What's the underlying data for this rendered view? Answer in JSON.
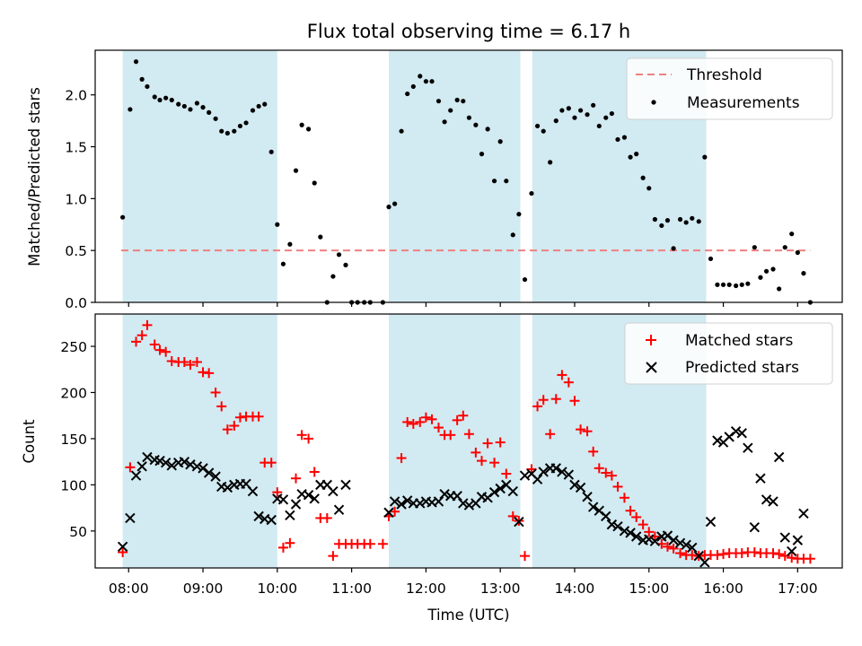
{
  "figure": {
    "title": "Flux total observing time = 6.17 h",
    "xlabel": "Time (UTC)",
    "xticks": [
      {
        "t": 8.0,
        "label": "08:00"
      },
      {
        "t": 9.0,
        "label": "09:00"
      },
      {
        "t": 10.0,
        "label": "10:00"
      },
      {
        "t": 11.0,
        "label": "11:00"
      },
      {
        "t": 12.0,
        "label": "12:00"
      },
      {
        "t": 13.0,
        "label": "13:00"
      },
      {
        "t": 14.0,
        "label": "14:00"
      },
      {
        "t": 15.0,
        "label": "15:00"
      },
      {
        "t": 16.0,
        "label": "16:00"
      },
      {
        "t": 17.0,
        "label": "17:00"
      }
    ],
    "xlim": [
      7.55,
      17.6
    ],
    "shaded_intervals": [
      [
        7.92,
        10.0
      ],
      [
        11.5,
        13.27
      ],
      [
        13.43,
        15.77
      ]
    ],
    "shade_color": "#add8e6"
  },
  "chart_data": [
    {
      "type": "scatter",
      "ylabel": "Matched/Predicted stars",
      "ylim": [
        0,
        2.43
      ],
      "yticks": [
        "0.0",
        "0.5",
        "1.0",
        "1.5",
        "2.0"
      ],
      "ytick_values": [
        0,
        0.5,
        1.0,
        1.5,
        2.0
      ],
      "threshold": {
        "name": "Threshold",
        "value": 0.5,
        "x_range": [
          7.9,
          17.17
        ],
        "color": "#f08080"
      },
      "series": [
        {
          "name": "Measurements",
          "color": "#000000",
          "marker": "dot",
          "x": [
            7.92,
            8.02,
            8.1,
            8.18,
            8.25,
            8.35,
            8.42,
            8.5,
            8.58,
            8.67,
            8.75,
            8.83,
            8.92,
            9.0,
            9.08,
            9.17,
            9.25,
            9.33,
            9.42,
            9.5,
            9.58,
            9.67,
            9.75,
            9.83,
            9.92,
            10.0,
            10.08,
            10.17,
            10.25,
            10.33,
            10.42,
            10.5,
            10.58,
            10.67,
            10.75,
            10.83,
            10.92,
            11.0,
            11.08,
            11.17,
            11.25,
            11.42,
            11.5,
            11.58,
            11.67,
            11.75,
            11.83,
            11.92,
            12.0,
            12.08,
            12.17,
            12.25,
            12.33,
            12.42,
            12.5,
            12.58,
            12.67,
            12.75,
            12.83,
            12.92,
            13.0,
            13.08,
            13.17,
            13.25,
            13.33,
            13.42,
            13.5,
            13.58,
            13.67,
            13.75,
            13.83,
            13.92,
            14.0,
            14.08,
            14.17,
            14.25,
            14.33,
            14.42,
            14.5,
            14.58,
            14.67,
            14.75,
            14.83,
            14.92,
            15.0,
            15.08,
            15.17,
            15.25,
            15.33,
            15.42,
            15.5,
            15.58,
            15.67,
            15.75,
            15.83,
            15.92,
            16.0,
            16.08,
            16.17,
            16.25,
            16.33,
            16.42,
            16.5,
            16.58,
            16.67,
            16.75,
            16.83,
            16.92,
            17.0,
            17.08,
            17.17
          ],
          "y": [
            0.82,
            1.86,
            2.32,
            2.15,
            2.08,
            1.98,
            1.95,
            1.97,
            1.95,
            1.91,
            1.89,
            1.86,
            1.92,
            1.88,
            1.83,
            1.77,
            1.65,
            1.63,
            1.65,
            1.7,
            1.73,
            1.85,
            1.89,
            1.91,
            1.45,
            0.75,
            0.37,
            0.56,
            1.27,
            1.71,
            1.67,
            1.15,
            0.63,
            0.0,
            0.25,
            0.46,
            0.36,
            0.0,
            0.0,
            0.0,
            0.0,
            0.0,
            0.92,
            0.95,
            1.65,
            2.01,
            2.08,
            2.18,
            2.13,
            2.13,
            1.94,
            1.74,
            1.85,
            1.95,
            1.94,
            1.78,
            1.71,
            1.43,
            1.67,
            1.17,
            1.55,
            1.17,
            0.65,
            0.85,
            0.22,
            1.05,
            1.7,
            1.65,
            1.35,
            1.75,
            1.85,
            1.87,
            1.78,
            1.85,
            1.81,
            1.9,
            1.7,
            1.78,
            1.82,
            1.57,
            1.59,
            1.4,
            1.43,
            1.2,
            1.1,
            0.8,
            0.74,
            0.79,
            0.52,
            0.8,
            0.77,
            0.81,
            0.78,
            1.4,
            0.42,
            0.17,
            0.17,
            0.17,
            0.16,
            0.17,
            0.18,
            0.53,
            0.24,
            0.3,
            0.32,
            0.13,
            0.53,
            0.66,
            0.48,
            0.28,
            0.0
          ]
        }
      ],
      "legend": {
        "placement": "top-right",
        "entries": [
          "Threshold",
          "Measurements"
        ]
      }
    },
    {
      "type": "scatter",
      "ylabel": "Count",
      "ylim": [
        10,
        285
      ],
      "yticks": [
        "50",
        "100",
        "150",
        "200",
        "250"
      ],
      "ytick_values": [
        50,
        100,
        150,
        200,
        250
      ],
      "series": [
        {
          "name": "Matched stars",
          "color": "#ff0000",
          "marker": "plus",
          "x": [
            7.92,
            8.02,
            8.1,
            8.18,
            8.25,
            8.35,
            8.42,
            8.5,
            8.58,
            8.67,
            8.75,
            8.83,
            8.92,
            9.0,
            9.08,
            9.17,
            9.25,
            9.33,
            9.42,
            9.5,
            9.58,
            9.67,
            9.75,
            9.83,
            9.92,
            10.0,
            10.08,
            10.17,
            10.25,
            10.33,
            10.42,
            10.5,
            10.58,
            10.67,
            10.75,
            10.83,
            10.92,
            11.0,
            11.08,
            11.17,
            11.25,
            11.42,
            11.5,
            11.58,
            11.67,
            11.75,
            11.83,
            11.92,
            12.0,
            12.08,
            12.17,
            12.25,
            12.33,
            12.42,
            12.5,
            12.58,
            12.67,
            12.75,
            12.83,
            12.92,
            13.0,
            13.08,
            13.17,
            13.25,
            13.33,
            13.42,
            13.5,
            13.58,
            13.67,
            13.75,
            13.83,
            13.92,
            14.0,
            14.08,
            14.17,
            14.25,
            14.33,
            14.42,
            14.5,
            14.58,
            14.67,
            14.75,
            14.83,
            14.92,
            15.0,
            15.08,
            15.17,
            15.25,
            15.33,
            15.42,
            15.5,
            15.58,
            15.67,
            15.75,
            15.83,
            15.92,
            16.0,
            16.08,
            16.17,
            16.25,
            16.33,
            16.42,
            16.5,
            16.58,
            16.67,
            16.75,
            16.83,
            16.92,
            17.0,
            17.08,
            17.17
          ],
          "y": [
            27,
            119,
            255,
            262,
            273,
            252,
            246,
            244,
            234,
            233,
            233,
            230,
            233,
            222,
            221,
            200,
            185,
            160,
            164,
            173,
            174,
            174,
            174,
            124,
            124,
            92,
            32,
            37,
            107,
            154,
            150,
            114,
            64,
            64,
            23,
            36,
            36,
            36,
            36,
            36,
            36,
            36,
            66,
            71,
            129,
            168,
            166,
            168,
            173,
            171,
            162,
            154,
            154,
            170,
            175,
            155,
            135,
            126,
            145,
            124,
            146,
            112,
            66,
            61,
            23,
            117,
            185,
            192,
            155,
            193,
            219,
            211,
            191,
            160,
            158,
            136,
            118,
            113,
            110,
            98,
            86,
            72,
            65,
            57,
            49,
            44,
            36,
            33,
            31,
            26,
            24,
            24,
            23,
            24,
            24,
            24,
            25,
            26,
            26,
            26,
            27,
            27,
            26,
            26,
            26,
            25,
            23,
            21,
            20,
            20,
            20
          ]
        },
        {
          "name": "Predicted stars",
          "color": "#000000",
          "marker": "x",
          "x": [
            7.92,
            8.02,
            8.1,
            8.18,
            8.25,
            8.35,
            8.42,
            8.5,
            8.58,
            8.67,
            8.75,
            8.83,
            8.92,
            9.0,
            9.08,
            9.17,
            9.25,
            9.33,
            9.42,
            9.5,
            9.58,
            9.67,
            9.75,
            9.83,
            9.92,
            10.0,
            10.08,
            10.17,
            10.25,
            10.33,
            10.42,
            10.5,
            10.58,
            10.67,
            10.75,
            10.83,
            10.92,
            11.0,
            11.08,
            11.17,
            11.25,
            11.42,
            11.5,
            11.58,
            11.67,
            11.75,
            11.83,
            11.92,
            12.0,
            12.08,
            12.17,
            12.25,
            12.33,
            12.42,
            12.5,
            12.58,
            12.67,
            12.75,
            12.83,
            12.92,
            13.0,
            13.08,
            13.17,
            13.25,
            13.33,
            13.42,
            13.5,
            13.58,
            13.67,
            13.75,
            13.83,
            13.92,
            14.0,
            14.08,
            14.17,
            14.25,
            14.33,
            14.42,
            14.5,
            14.58,
            14.67,
            14.75,
            14.83,
            14.92,
            15.0,
            15.08,
            15.17,
            15.25,
            15.33,
            15.42,
            15.5,
            15.58,
            15.67,
            15.75,
            15.83,
            15.92,
            16.0,
            16.08,
            16.17,
            16.25,
            16.33,
            16.42,
            16.5,
            16.58,
            16.67,
            16.75,
            16.83,
            16.92,
            17.0,
            17.08,
            17.17
          ],
          "y": [
            33,
            64,
            110,
            120,
            130,
            127,
            126,
            124,
            121,
            124,
            125,
            122,
            120,
            118,
            113,
            109,
            98,
            97,
            100,
            101,
            101,
            93,
            66,
            63,
            62,
            85,
            84,
            67,
            79,
            90,
            89,
            85,
            100,
            100,
            93,
            73,
            100,
            null,
            null,
            null,
            null,
            null,
            70,
            82,
            79,
            83,
            80,
            80,
            82,
            81,
            82,
            90,
            88,
            88,
            80,
            78,
            80,
            87,
            86,
            92,
            96,
            100,
            93,
            60,
            110,
            112,
            106,
            114,
            118,
            118,
            114,
            111,
            100,
            97,
            87,
            76,
            72,
            66,
            57,
            55,
            50,
            48,
            44,
            40,
            41,
            39,
            44,
            45,
            40,
            37,
            35,
            32,
            23,
            16,
            60,
            148,
            146,
            152,
            158,
            156,
            140,
            54,
            107,
            84,
            82,
            130,
            43,
            28,
            40,
            69,
            null
          ]
        }
      ],
      "legend": {
        "placement": "top-right",
        "entries": [
          "Matched stars",
          "Predicted stars"
        ]
      }
    }
  ]
}
